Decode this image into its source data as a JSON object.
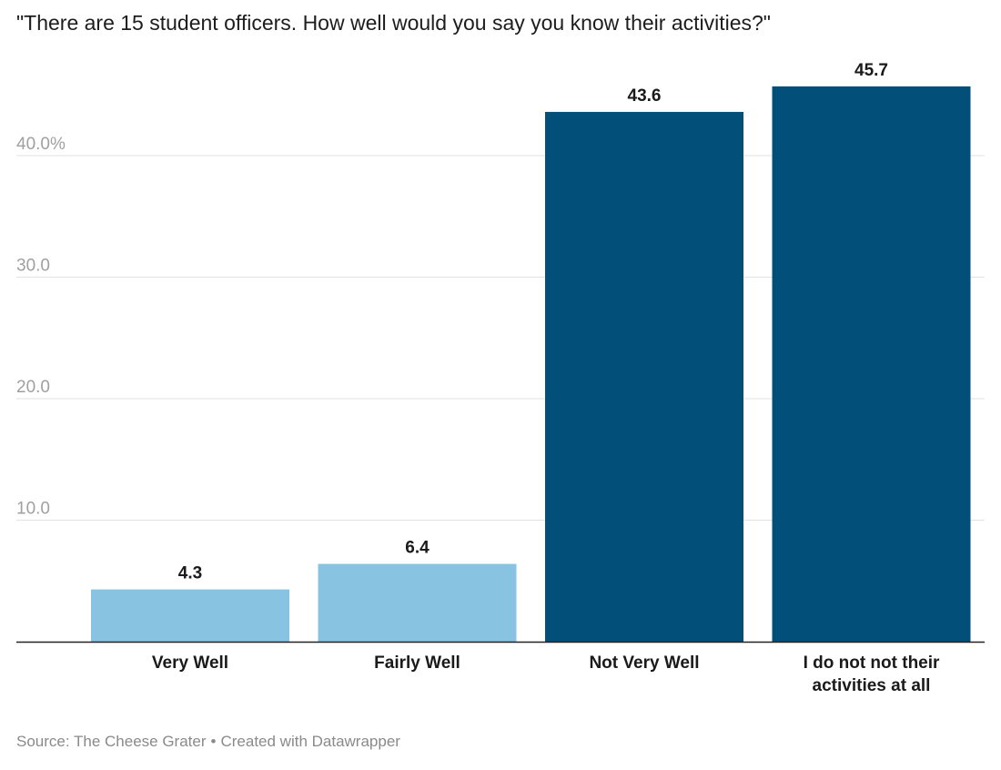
{
  "chart_data": {
    "type": "bar",
    "title": "\"There are 15 student officers. How well would you say you know their activities?\"",
    "categories": [
      "Very Well",
      "Fairly Well",
      "Not Very Well",
      "I do not not their activities at all"
    ],
    "category_lines": [
      [
        "Very Well"
      ],
      [
        "Fairly Well"
      ],
      [
        "Not Very Well"
      ],
      [
        "I do not not their",
        "activities at all"
      ]
    ],
    "values": [
      4.3,
      6.4,
      43.6,
      45.7
    ],
    "value_labels": [
      "4.3",
      "6.4",
      "43.6",
      "45.7"
    ],
    "bar_colors": [
      "#88c4e2",
      "#88c4e2",
      "#02507a",
      "#02507a"
    ],
    "yticks": [
      10,
      20,
      30,
      40
    ],
    "ytick_labels": [
      "10.0",
      "20.0",
      "30.0",
      "40.0%"
    ],
    "ylim": [
      0,
      46
    ],
    "xlabel": "",
    "ylabel": "",
    "grid": true
  },
  "source": {
    "text": "Source: The Cheese Grater",
    "separator": "•",
    "credit": "Created with Datawrapper"
  }
}
